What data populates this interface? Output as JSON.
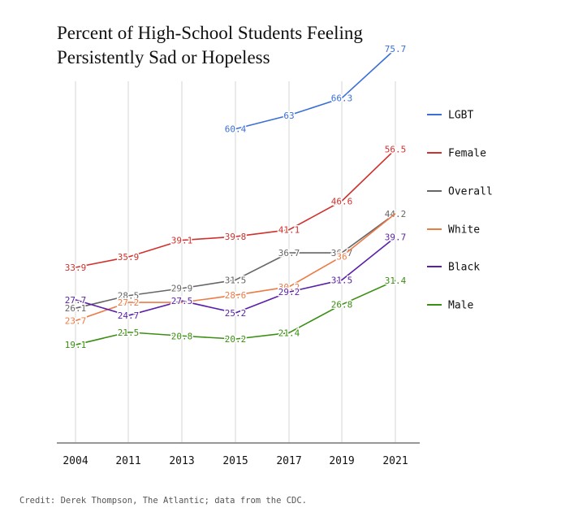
{
  "title": {
    "line1": "Percent of High-School Students Feeling",
    "line2": "Persistently Sad or Hopeless"
  },
  "credit": "Credit: Derek Thompson, The Atlantic; data from the CDC.",
  "chart_data": {
    "type": "line",
    "categories": [
      "2004",
      "2011",
      "2013",
      "2015",
      "2017",
      "2019",
      "2021"
    ],
    "ylim": [
      0,
      80
    ],
    "xlabel": "",
    "ylabel": "",
    "grid": "vertical",
    "legend_position": "right",
    "series": [
      {
        "name": "LGBT",
        "color": "#3a6fd8",
        "values": [
          null,
          null,
          null,
          60.4,
          63,
          66.3,
          75.7
        ],
        "labels": [
          "",
          "",
          "",
          "60.4",
          "63",
          "66.3",
          "75.7"
        ]
      },
      {
        "name": "Female",
        "color": "#d0312d",
        "values": [
          33.9,
          35.9,
          39.1,
          39.8,
          41.1,
          46.6,
          56.5
        ],
        "labels": [
          "33.9",
          "35.9",
          "39.1",
          "39.8",
          "41.1",
          "46.6",
          "56.5"
        ]
      },
      {
        "name": "Overall",
        "color": "#666666",
        "values": [
          26.1,
          28.5,
          29.9,
          31.5,
          36.7,
          36.7,
          44.2
        ],
        "labels": [
          "26.1",
          "28.5",
          "29.9",
          "31.5",
          "36.7",
          "36.7",
          "44.2"
        ]
      },
      {
        "name": "White",
        "color": "#ee7a45",
        "values": [
          23.7,
          27.2,
          27.2,
          28.6,
          30.2,
          36,
          44.2
        ],
        "labels": [
          "23.7",
          "27.2",
          "",
          "28.6",
          "30.2",
          "36",
          ""
        ]
      },
      {
        "name": "Black",
        "color": "#5a1fa8",
        "values": [
          27.7,
          24.7,
          27.5,
          25.2,
          29.2,
          31.5,
          39.7
        ],
        "labels": [
          "27.7",
          "24.7",
          "27.5",
          "25.2",
          "29.2",
          "31.5",
          "39.7"
        ]
      },
      {
        "name": "Male",
        "color": "#3b8f12",
        "values": [
          19.1,
          21.5,
          20.8,
          20.2,
          21.4,
          26.8,
          31.4
        ],
        "labels": [
          "19.1",
          "21.5",
          "20.8",
          "20.2",
          "21.4",
          "26.8",
          "31.4"
        ]
      }
    ]
  }
}
